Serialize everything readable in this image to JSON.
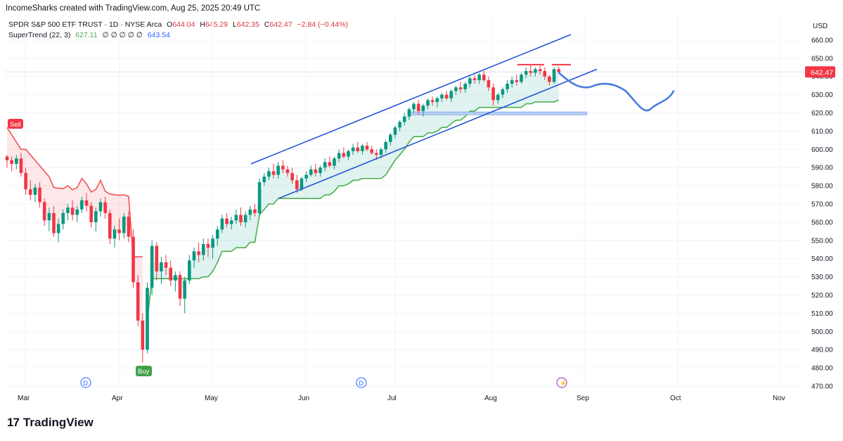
{
  "header": {
    "attribution": "IncomeSharks created with TradingView.com, Aug 25, 2025 20:49 UTC"
  },
  "symbol": {
    "name": "SPDR S&P 500 ETF TRUST · 1D · NYSE Arca",
    "open_label": "O",
    "open": "644.04",
    "high_label": "H",
    "high": "645.29",
    "low_label": "L",
    "low": "642.35",
    "close_label": "C",
    "close": "642.47",
    "change": "−2.84 (−0.44%)"
  },
  "indicator": {
    "name": "SuperTrend (22, 3)",
    "value1": "627.11",
    "zeros": "∅ ∅ ∅ ∅ ∅",
    "value2": "643.54"
  },
  "footer": {
    "logo_text": "TradingView",
    "logo_mark": "17"
  },
  "colors": {
    "up": "#089981",
    "down": "#f23645",
    "supertrend_up": "#4caf50",
    "supertrend_down": "#f05454",
    "channel": "#2456d6",
    "projection": "#4a7be0",
    "price_badge": "#f23645",
    "grid": "#f0f3fa"
  },
  "chart_data": {
    "type": "candlestick",
    "currency": "USD",
    "ylim": [
      465,
      668
    ],
    "y_ticks": [
      470,
      480,
      490,
      500,
      510,
      520,
      530,
      540,
      550,
      560,
      570,
      580,
      590,
      600,
      610,
      620,
      630,
      640,
      650,
      660
    ],
    "x_labels": [
      "Mar",
      "Apr",
      "May",
      "Jun",
      "Jul",
      "Aug",
      "Sep",
      "Oct",
      "Nov"
    ],
    "last_price": "642.47",
    "markers": [
      {
        "label": "Sell",
        "type": "sell"
      },
      {
        "label": "Buy",
        "type": "buy"
      }
    ],
    "event_icons": [
      "D",
      "D",
      "⚡"
    ],
    "candles": [
      [
        596,
        597,
        590,
        594
      ],
      [
        594,
        596,
        588,
        592
      ],
      [
        592,
        597,
        589,
        595
      ],
      [
        595,
        598,
        585,
        587
      ],
      [
        587,
        590,
        575,
        578
      ],
      [
        578,
        583,
        572,
        575
      ],
      [
        575,
        581,
        571,
        579
      ],
      [
        579,
        582,
        568,
        571
      ],
      [
        571,
        573,
        558,
        561
      ],
      [
        561,
        568,
        555,
        565
      ],
      [
        565,
        569,
        552,
        554
      ],
      [
        554,
        562,
        549,
        559
      ],
      [
        559,
        567,
        556,
        565
      ],
      [
        565,
        570,
        561,
        568
      ],
      [
        568,
        572,
        561,
        564
      ],
      [
        564,
        569,
        560,
        567
      ],
      [
        567,
        574,
        565,
        572
      ],
      [
        572,
        576,
        566,
        569
      ],
      [
        569,
        571,
        557,
        560
      ],
      [
        560,
        568,
        555,
        566
      ],
      [
        566,
        573,
        563,
        571
      ],
      [
        571,
        574,
        562,
        565
      ],
      [
        565,
        567,
        548,
        551
      ],
      [
        551,
        558,
        546,
        556
      ],
      [
        556,
        562,
        550,
        554
      ],
      [
        554,
        565,
        551,
        563
      ],
      [
        563,
        566,
        549,
        552
      ],
      [
        552,
        556,
        524,
        527
      ],
      [
        527,
        531,
        503,
        506
      ],
      [
        506,
        510,
        483,
        490
      ],
      [
        490,
        527,
        488,
        524
      ],
      [
        524,
        550,
        520,
        547
      ],
      [
        547,
        549,
        528,
        533
      ],
      [
        533,
        541,
        526,
        538
      ],
      [
        538,
        542,
        531,
        535
      ],
      [
        535,
        539,
        525,
        528
      ],
      [
        528,
        533,
        522,
        531
      ],
      [
        531,
        533,
        514,
        518
      ],
      [
        518,
        530,
        510,
        528
      ],
      [
        528,
        542,
        526,
        539
      ],
      [
        539,
        546,
        535,
        544
      ],
      [
        544,
        549,
        538,
        542
      ],
      [
        542,
        551,
        539,
        548
      ],
      [
        548,
        551,
        541,
        546
      ],
      [
        546,
        553,
        540,
        551
      ],
      [
        551,
        558,
        547,
        556
      ],
      [
        556,
        564,
        554,
        562
      ],
      [
        562,
        565,
        557,
        559
      ],
      [
        559,
        563,
        556,
        561
      ],
      [
        561,
        567,
        559,
        564
      ],
      [
        564,
        568,
        558,
        560
      ],
      [
        560,
        566,
        557,
        564
      ],
      [
        564,
        569,
        561,
        567
      ],
      [
        567,
        570,
        563,
        565
      ],
      [
        565,
        584,
        563,
        582
      ],
      [
        582,
        587,
        580,
        585
      ],
      [
        585,
        590,
        583,
        588
      ],
      [
        588,
        592,
        584,
        586
      ],
      [
        586,
        593,
        584,
        591
      ],
      [
        591,
        594,
        587,
        589
      ],
      [
        589,
        591,
        585,
        587
      ],
      [
        587,
        590,
        581,
        583
      ],
      [
        583,
        586,
        576,
        578
      ],
      [
        578,
        585,
        577,
        584
      ],
      [
        584,
        588,
        582,
        586
      ],
      [
        586,
        591,
        585,
        589
      ],
      [
        589,
        592,
        585,
        587
      ],
      [
        587,
        591,
        585,
        590
      ],
      [
        590,
        595,
        588,
        593
      ],
      [
        593,
        596,
        590,
        591
      ],
      [
        591,
        596,
        589,
        595
      ],
      [
        595,
        600,
        593,
        598
      ],
      [
        598,
        601,
        595,
        596
      ],
      [
        596,
        600,
        594,
        599
      ],
      [
        599,
        603,
        597,
        601
      ],
      [
        601,
        604,
        598,
        599
      ],
      [
        599,
        603,
        597,
        602
      ],
      [
        602,
        604,
        599,
        600
      ],
      [
        600,
        602,
        597,
        598
      ],
      [
        598,
        600,
        594,
        597
      ],
      [
        597,
        601,
        595,
        600
      ],
      [
        600,
        605,
        598,
        604
      ],
      [
        604,
        609,
        602,
        608
      ],
      [
        608,
        613,
        606,
        612
      ],
      [
        612,
        616,
        610,
        615
      ],
      [
        615,
        620,
        613,
        618
      ],
      [
        618,
        623,
        616,
        622
      ],
      [
        622,
        626,
        620,
        625
      ],
      [
        625,
        627,
        619,
        621
      ],
      [
        621,
        625,
        618,
        624
      ],
      [
        624,
        628,
        622,
        627
      ],
      [
        627,
        629,
        624,
        626
      ],
      [
        626,
        629,
        623,
        628
      ],
      [
        628,
        631,
        626,
        630
      ],
      [
        630,
        632,
        627,
        628
      ],
      [
        628,
        633,
        626,
        632
      ],
      [
        632,
        635,
        630,
        634
      ],
      [
        634,
        637,
        631,
        633
      ],
      [
        633,
        637,
        631,
        636
      ],
      [
        636,
        640,
        634,
        639
      ],
      [
        639,
        641,
        636,
        638
      ],
      [
        638,
        642,
        636,
        641
      ],
      [
        641,
        643,
        637,
        638
      ],
      [
        638,
        640,
        632,
        634
      ],
      [
        634,
        636,
        624,
        627
      ],
      [
        627,
        631,
        625,
        630
      ],
      [
        630,
        634,
        628,
        633
      ],
      [
        633,
        638,
        631,
        636
      ],
      [
        636,
        640,
        634,
        638
      ],
      [
        638,
        641,
        635,
        637
      ],
      [
        637,
        642,
        636,
        641
      ],
      [
        641,
        645,
        639,
        643
      ],
      [
        643,
        646,
        640,
        642
      ],
      [
        642,
        645,
        640,
        644
      ],
      [
        644,
        646,
        641,
        643
      ],
      [
        643,
        645,
        638,
        640
      ],
      [
        640,
        641,
        635,
        637
      ],
      [
        637,
        645,
        636,
        644
      ],
      [
        644.04,
        645.29,
        642.35,
        642.47
      ]
    ]
  }
}
